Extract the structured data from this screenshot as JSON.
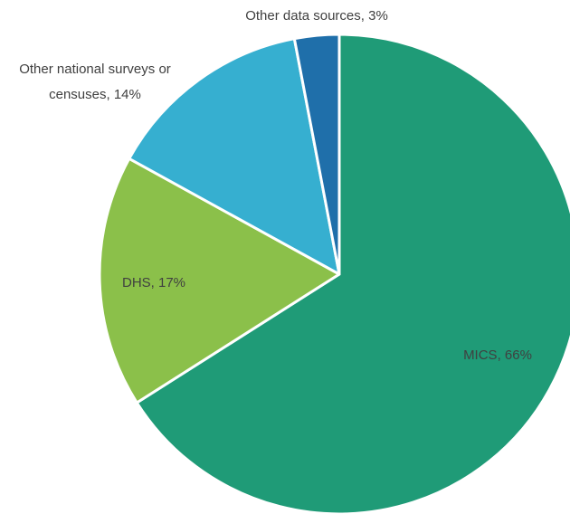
{
  "chart_data": {
    "type": "pie",
    "values": [
      66,
      17,
      14,
      3
    ],
    "value_labels": [
      "MICS, 66%",
      "DHS, 17%",
      "Other national surveys or censuses, 14%",
      "Other data sources, 3%"
    ],
    "colors": [
      "#1f9b77",
      "#8bc04a",
      "#36afd0",
      "#1f6faa"
    ]
  }
}
